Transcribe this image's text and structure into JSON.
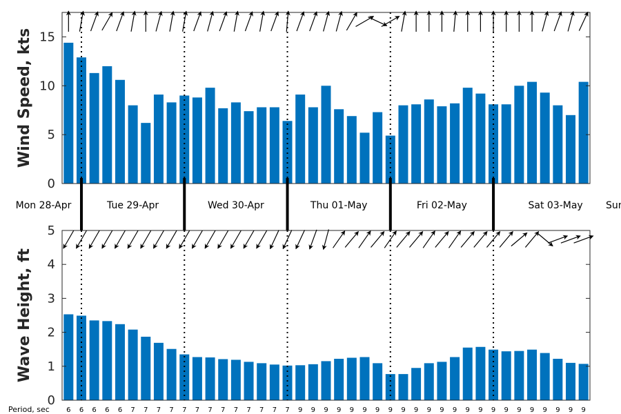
{
  "chart_data": [
    {
      "type": "bar",
      "ylabel": "Wind Speed, kts",
      "ylim": [
        0,
        17.5
      ],
      "yticks": [
        0,
        5,
        10,
        15
      ],
      "color": "#0072bd",
      "values": [
        14.4,
        12.9,
        11.3,
        12.0,
        10.6,
        8.0,
        6.2,
        9.1,
        8.3,
        9.0,
        8.8,
        9.8,
        7.7,
        8.3,
        7.4,
        7.8,
        7.8,
        6.4,
        9.1,
        7.8,
        10.0,
        7.6,
        6.9,
        5.2,
        7.3,
        4.9,
        8.0,
        8.1,
        8.6,
        7.9,
        8.2,
        9.8,
        9.2,
        8.1,
        8.1,
        10.0,
        10.4,
        9.3,
        8.0,
        7.0,
        10.4
      ],
      "direction_arrows_deg": [
        270,
        280,
        290,
        300,
        290,
        280,
        270,
        285,
        280,
        280,
        290,
        285,
        290,
        280,
        290,
        280,
        290,
        275,
        290,
        290,
        285,
        285,
        300,
        330,
        25,
        330,
        280,
        270,
        270,
        270,
        275,
        270,
        270,
        270,
        270,
        270,
        270,
        285,
        290,
        285,
        295
      ],
      "day_separator_indices": [
        1,
        9,
        17,
        25,
        33
      ]
    },
    {
      "type": "bar",
      "ylabel": "Wave Height, ft",
      "ylim": [
        0,
        5
      ],
      "yticks": [
        0,
        1,
        2,
        3,
        4,
        5
      ],
      "color": "#0072bd",
      "values": [
        2.53,
        2.49,
        2.35,
        2.33,
        2.24,
        2.08,
        1.87,
        1.69,
        1.51,
        1.35,
        1.27,
        1.26,
        1.21,
        1.19,
        1.13,
        1.09,
        1.05,
        1.02,
        1.03,
        1.06,
        1.15,
        1.22,
        1.25,
        1.27,
        1.09,
        0.77,
        0.77,
        0.95,
        1.09,
        1.13,
        1.27,
        1.55,
        1.57,
        1.49,
        1.44,
        1.45,
        1.49,
        1.39,
        1.22,
        1.1,
        1.07
      ],
      "direction_arrows_deg": [
        120,
        120,
        120,
        120,
        120,
        120,
        120,
        120,
        120,
        120,
        120,
        120,
        120,
        120,
        120,
        120,
        115,
        115,
        115,
        110,
        105,
        305,
        310,
        305,
        310,
        305,
        310,
        310,
        305,
        310,
        305,
        310,
        310,
        310,
        310,
        320,
        310,
        40,
        340,
        340,
        340
      ],
      "day_separator_indices": [
        1,
        9,
        17,
        25,
        33
      ],
      "period_title": "Period, sec",
      "periods": [
        "6",
        "6",
        "6",
        "6",
        "6",
        "7",
        "7",
        "7",
        "7",
        "7",
        "7",
        "7",
        "7",
        "7",
        "7",
        "7",
        "7",
        "7",
        "9",
        "9",
        "9",
        "9",
        "9",
        "9",
        "9",
        "9",
        "9",
        "9",
        "9",
        "9",
        "9",
        "9",
        "9",
        "9",
        "9",
        "9",
        "9",
        "9",
        "9",
        "9",
        "9"
      ]
    }
  ],
  "days": [
    "Mon 28-Apr",
    "Tue 29-Apr",
    "Wed 30-Apr",
    "Thu 01-May",
    "Fri 02-May",
    "Sat 03-May",
    "Sun"
  ]
}
